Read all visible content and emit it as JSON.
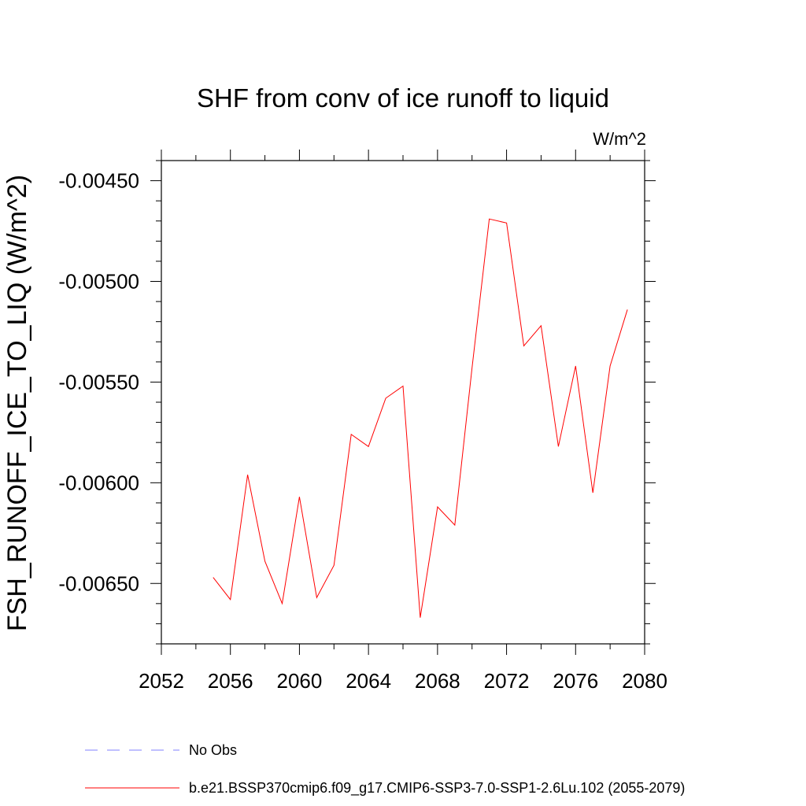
{
  "chart_data": {
    "type": "line",
    "title": "SHF from conv of ice runoff to liquid",
    "units": "W/m^2",
    "ylabel": "FSH_RUNOFF_ICE_TO_LIQ  (W/m^2)",
    "xlabel": "",
    "xlim": [
      2052,
      2080
    ],
    "ylim": [
      -0.0068,
      -0.0044
    ],
    "xticks": [
      2052,
      2056,
      2060,
      2064,
      2068,
      2072,
      2076,
      2080
    ],
    "xtick_labels": [
      "2052",
      "2056",
      "2060",
      "2064",
      "2068",
      "2072",
      "2076",
      "2080"
    ],
    "yticks": [
      -0.0045,
      -0.005,
      -0.0055,
      -0.006,
      -0.0065
    ],
    "ytick_labels": [
      "-0.00450",
      "-0.00500",
      "-0.00550",
      "-0.00600",
      "-0.00650"
    ],
    "grid": false,
    "legend_position": "bottom",
    "series": [
      {
        "name": "No Obs",
        "color": "#8080ff",
        "style": "dashed",
        "x": [],
        "y": []
      },
      {
        "name": "b.e21.BSSP370cmip6.f09_g17.CMIP6-SSP3-7.0-SSP1-2.6Lu.102 (2055-2079)",
        "color": "#ff0000",
        "style": "solid",
        "x": [
          2055,
          2056,
          2057,
          2058,
          2059,
          2060,
          2061,
          2062,
          2063,
          2064,
          2065,
          2066,
          2067,
          2068,
          2069,
          2070,
          2071,
          2072,
          2073,
          2074,
          2075,
          2076,
          2077,
          2078,
          2079
        ],
        "y": [
          -0.00647,
          -0.00658,
          -0.00596,
          -0.00639,
          -0.0066,
          -0.00607,
          -0.00657,
          -0.00641,
          -0.00576,
          -0.00582,
          -0.00558,
          -0.00552,
          -0.00667,
          -0.00612,
          -0.00621,
          -0.00543,
          -0.00469,
          -0.00471,
          -0.00532,
          -0.00522,
          -0.00582,
          -0.00542,
          -0.00605,
          -0.00542,
          -0.00514
        ]
      }
    ]
  }
}
